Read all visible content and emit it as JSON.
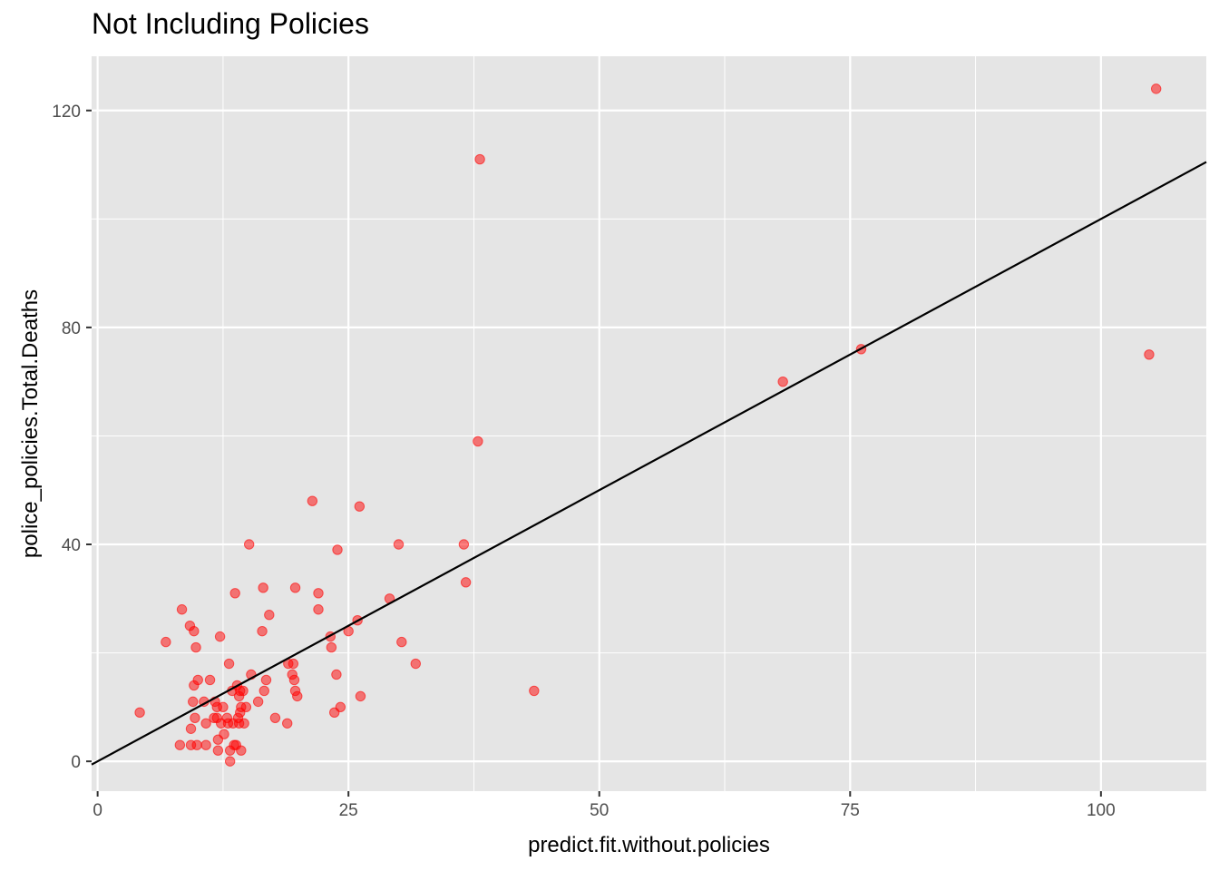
{
  "chart_data": {
    "type": "scatter",
    "title": "Not Including Policies",
    "xlabel": "predict.fit.without.policies",
    "ylabel": "police_policies.Total.Deaths",
    "xlim": [
      -0.6,
      110.5
    ],
    "ylim": [
      -5.5,
      130
    ],
    "x_ticks": [
      0,
      25,
      50,
      75,
      100
    ],
    "x_tick_labels": [
      "0",
      "25",
      "50",
      "75",
      "100"
    ],
    "y_ticks": [
      0,
      40,
      80,
      120
    ],
    "y_tick_labels": [
      "0",
      "40",
      "80",
      "120"
    ],
    "grid": true,
    "legend": "none",
    "point_color": "#ff0000",
    "point_alpha": 0.5,
    "line_color": "#000000",
    "panel_background": "#e5e5e5",
    "reference_line": {
      "intercept": 0,
      "slope": 1
    },
    "points": [
      {
        "x": 4.2,
        "y": 9
      },
      {
        "x": 6.8,
        "y": 22
      },
      {
        "x": 8.2,
        "y": 3
      },
      {
        "x": 8.4,
        "y": 28
      },
      {
        "x": 9.2,
        "y": 25
      },
      {
        "x": 9.3,
        "y": 6
      },
      {
        "x": 9.3,
        "y": 3
      },
      {
        "x": 9.6,
        "y": 24
      },
      {
        "x": 9.5,
        "y": 11
      },
      {
        "x": 9.6,
        "y": 14
      },
      {
        "x": 9.7,
        "y": 8
      },
      {
        "x": 9.8,
        "y": 21
      },
      {
        "x": 9.9,
        "y": 3
      },
      {
        "x": 10.0,
        "y": 15
      },
      {
        "x": 10.6,
        "y": 11
      },
      {
        "x": 10.8,
        "y": 3
      },
      {
        "x": 10.8,
        "y": 7
      },
      {
        "x": 11.2,
        "y": 15
      },
      {
        "x": 11.6,
        "y": 8
      },
      {
        "x": 11.7,
        "y": 11
      },
      {
        "x": 11.9,
        "y": 10
      },
      {
        "x": 11.9,
        "y": 8
      },
      {
        "x": 12.0,
        "y": 4
      },
      {
        "x": 12.0,
        "y": 2
      },
      {
        "x": 12.2,
        "y": 23
      },
      {
        "x": 12.3,
        "y": 7
      },
      {
        "x": 12.5,
        "y": 10
      },
      {
        "x": 12.6,
        "y": 5
      },
      {
        "x": 12.9,
        "y": 8
      },
      {
        "x": 13.0,
        "y": 7
      },
      {
        "x": 13.1,
        "y": 18
      },
      {
        "x": 13.2,
        "y": 0
      },
      {
        "x": 13.2,
        "y": 2
      },
      {
        "x": 13.4,
        "y": 13
      },
      {
        "x": 13.5,
        "y": 7
      },
      {
        "x": 13.6,
        "y": 3
      },
      {
        "x": 13.7,
        "y": 31
      },
      {
        "x": 13.8,
        "y": 3
      },
      {
        "x": 13.9,
        "y": 14
      },
      {
        "x": 14.0,
        "y": 8
      },
      {
        "x": 14.1,
        "y": 7
      },
      {
        "x": 14.1,
        "y": 12
      },
      {
        "x": 14.2,
        "y": 13
      },
      {
        "x": 14.2,
        "y": 9
      },
      {
        "x": 14.3,
        "y": 10
      },
      {
        "x": 14.3,
        "y": 2
      },
      {
        "x": 14.5,
        "y": 13
      },
      {
        "x": 14.6,
        "y": 7
      },
      {
        "x": 14.8,
        "y": 10
      },
      {
        "x": 15.1,
        "y": 40
      },
      {
        "x": 15.3,
        "y": 16
      },
      {
        "x": 16.0,
        "y": 11
      },
      {
        "x": 16.4,
        "y": 24
      },
      {
        "x": 16.5,
        "y": 32
      },
      {
        "x": 16.6,
        "y": 13
      },
      {
        "x": 16.8,
        "y": 15
      },
      {
        "x": 17.1,
        "y": 27
      },
      {
        "x": 17.7,
        "y": 8
      },
      {
        "x": 18.9,
        "y": 7
      },
      {
        "x": 19.0,
        "y": 18
      },
      {
        "x": 19.4,
        "y": 16
      },
      {
        "x": 19.5,
        "y": 18
      },
      {
        "x": 19.6,
        "y": 15
      },
      {
        "x": 19.7,
        "y": 32
      },
      {
        "x": 19.7,
        "y": 13
      },
      {
        "x": 19.9,
        "y": 12
      },
      {
        "x": 21.4,
        "y": 48
      },
      {
        "x": 22.0,
        "y": 31
      },
      {
        "x": 22.0,
        "y": 28
      },
      {
        "x": 23.2,
        "y": 23
      },
      {
        "x": 23.3,
        "y": 21
      },
      {
        "x": 23.6,
        "y": 9
      },
      {
        "x": 23.8,
        "y": 16
      },
      {
        "x": 23.9,
        "y": 39
      },
      {
        "x": 24.2,
        "y": 10
      },
      {
        "x": 25.0,
        "y": 24
      },
      {
        "x": 25.9,
        "y": 26
      },
      {
        "x": 26.1,
        "y": 47
      },
      {
        "x": 26.2,
        "y": 12
      },
      {
        "x": 29.1,
        "y": 30
      },
      {
        "x": 30.0,
        "y": 40
      },
      {
        "x": 30.3,
        "y": 22
      },
      {
        "x": 31.7,
        "y": 18
      },
      {
        "x": 36.5,
        "y": 40
      },
      {
        "x": 36.7,
        "y": 33
      },
      {
        "x": 37.9,
        "y": 59
      },
      {
        "x": 38.1,
        "y": 111
      },
      {
        "x": 43.5,
        "y": 13
      },
      {
        "x": 68.3,
        "y": 70
      },
      {
        "x": 76.1,
        "y": 76
      },
      {
        "x": 104.8,
        "y": 75
      },
      {
        "x": 105.5,
        "y": 124
      }
    ]
  }
}
